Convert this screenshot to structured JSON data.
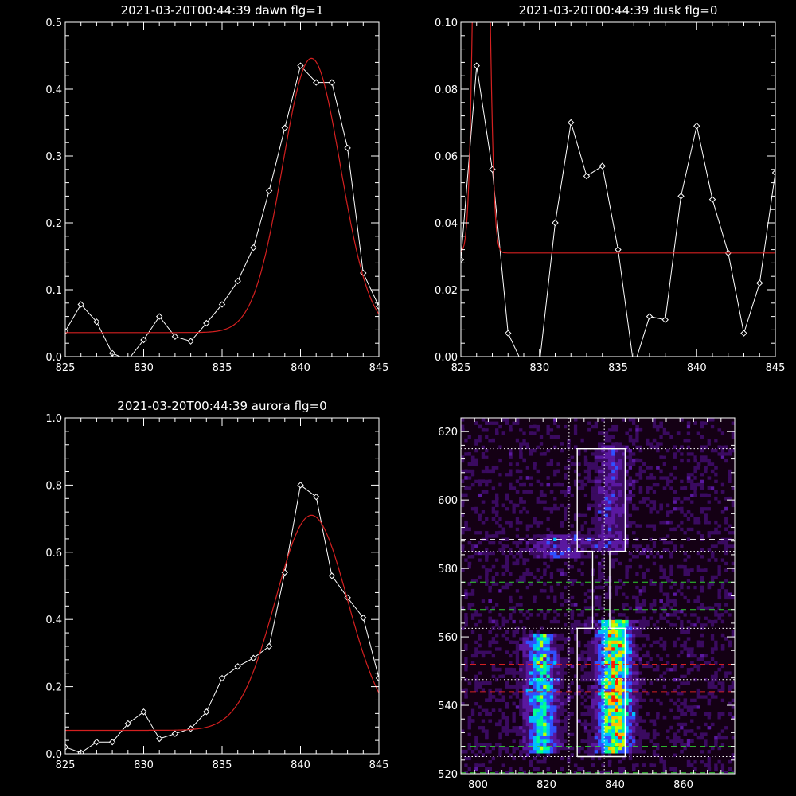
{
  "chart_data": [
    {
      "type": "line",
      "title": "2021-03-20T00:44:39 dawn flg=1",
      "xlim": [
        825,
        845
      ],
      "ylim": [
        0,
        0.5
      ],
      "xticks": [
        "825",
        "830",
        "835",
        "840",
        "845"
      ],
      "yticks": [
        "0.0",
        "0.1",
        "0.2",
        "0.3",
        "0.4",
        "0.5"
      ],
      "series": [
        {
          "style": "observed",
          "color": "#ffffff",
          "marker": "diamond",
          "x": [
            825,
            826,
            827,
            828,
            829,
            830,
            831,
            832,
            833,
            834,
            835,
            836,
            837,
            838,
            839,
            840,
            841,
            842,
            843,
            844,
            845
          ],
          "y": [
            0.038,
            0.078,
            0.052,
            0.005,
            -0.005,
            0.025,
            0.06,
            0.03,
            0.023,
            0.05,
            0.078,
            0.113,
            0.163,
            0.248,
            0.342,
            0.435,
            0.41,
            0.41,
            0.312,
            0.125,
            0.075
          ]
        },
        {
          "style": "fit",
          "color": "#d42020",
          "fit": {
            "kind": "gaussian",
            "baseline": 0.036,
            "amplitude": 0.41,
            "center": 840.7,
            "sigma": 1.85
          }
        }
      ]
    },
    {
      "type": "line",
      "title": "2021-03-20T00:44:39 dusk flg=0",
      "xlim": [
        825,
        845
      ],
      "ylim": [
        0,
        0.1
      ],
      "xticks": [
        "825",
        "830",
        "835",
        "840",
        "845"
      ],
      "yticks": [
        "0.00",
        "0.02",
        "0.04",
        "0.06",
        "0.08",
        "0.10"
      ],
      "series": [
        {
          "style": "observed",
          "color": "#ffffff",
          "marker": "diamond",
          "x": [
            825,
            826,
            827,
            828,
            829,
            830,
            831,
            832,
            833,
            834,
            835,
            836,
            837,
            838,
            839,
            840,
            841,
            842,
            843,
            844,
            845
          ],
          "y": [
            0.029,
            0.087,
            0.056,
            0.007,
            -0.003,
            -0.002,
            0.04,
            0.07,
            0.054,
            0.057,
            0.032,
            -0.003,
            0.012,
            0.011,
            0.048,
            0.069,
            0.047,
            0.031,
            0.007,
            0.022,
            0.055
          ]
        },
        {
          "style": "fit",
          "color": "#d42020",
          "fit": {
            "kind": "gaussian",
            "baseline": 0.031,
            "amplitude": 0.25,
            "center": 826.3,
            "sigma": 0.36
          }
        }
      ]
    },
    {
      "type": "line",
      "title": "2021-03-20T00:44:39 aurora flg=0",
      "xlim": [
        825,
        845
      ],
      "ylim": [
        0,
        1.0
      ],
      "xticks": [
        "825",
        "830",
        "835",
        "840",
        "845"
      ],
      "yticks": [
        "0.0",
        "0.2",
        "0.4",
        "0.6",
        "0.8",
        "1.0"
      ],
      "series": [
        {
          "style": "observed",
          "color": "#ffffff",
          "marker": "diamond",
          "x": [
            825,
            826,
            827,
            828,
            829,
            830,
            831,
            832,
            833,
            834,
            835,
            836,
            837,
            838,
            839,
            840,
            841,
            842,
            843,
            844,
            845
          ],
          "y": [
            0.02,
            0.003,
            0.035,
            0.035,
            0.09,
            0.125,
            0.045,
            0.06,
            0.075,
            0.125,
            0.225,
            0.26,
            0.285,
            0.32,
            0.54,
            0.8,
            0.765,
            0.53,
            0.465,
            0.405,
            0.225
          ]
        },
        {
          "style": "fit",
          "color": "#d42020",
          "fit": {
            "kind": "gaussian",
            "baseline": 0.07,
            "amplitude": 0.64,
            "center": 840.7,
            "sigma": 2.3
          }
        }
      ]
    },
    {
      "type": "heatmap",
      "title": "",
      "xlim": [
        795,
        875
      ],
      "ylim": [
        520,
        624
      ],
      "xticks": [
        "800",
        "820",
        "840",
        "860"
      ],
      "yticks": [
        "520",
        "540",
        "560",
        "580",
        "600",
        "620"
      ],
      "colormap": [
        "#140014",
        "#3a0a60",
        "#5a18a0",
        "#3050ff",
        "#00c0ff",
        "#00ff90",
        "#c0ff00",
        "#ffc000",
        "#ff2000"
      ],
      "bands": [
        {
          "x_center": 818.5,
          "x_width": 3.2,
          "y_range": [
            526,
            560
          ],
          "peak": 0.7
        },
        {
          "x_center": 840.0,
          "x_width": 3.4,
          "y_range": [
            526,
            564
          ],
          "peak": 1.0
        },
        {
          "x_center": 839.0,
          "x_width": 3.5,
          "y_range": [
            585,
            615
          ],
          "peak": 0.3
        },
        {
          "x_center": 823.5,
          "x_width": 6.0,
          "y_range": [
            583,
            589
          ],
          "peak": 0.3
        }
      ],
      "overlay_lines": [
        {
          "orientation": "horizontal",
          "value": 588.5,
          "color": "#ffffff",
          "dash": "dashed"
        },
        {
          "orientation": "horizontal",
          "value": 576,
          "color": "#30d030",
          "dash": "dashed"
        },
        {
          "orientation": "horizontal",
          "value": 568,
          "color": "#30d030",
          "dash": "dashed"
        },
        {
          "orientation": "horizontal",
          "value": 558.5,
          "color": "#ffffff",
          "dash": "dashed"
        },
        {
          "orientation": "horizontal",
          "value": 552,
          "color": "#d42020",
          "dash": "dashed"
        },
        {
          "orientation": "horizontal",
          "value": 544,
          "color": "#d42020",
          "dash": "dashed"
        },
        {
          "orientation": "horizontal",
          "value": 528,
          "color": "#30d030",
          "dash": "dashed"
        },
        {
          "orientation": "horizontal",
          "value": 520.3,
          "color": "#30d030",
          "dash": "dashed"
        },
        {
          "orientation": "horizontal",
          "value": 615,
          "color": "#ffffff",
          "dash": "dotted"
        },
        {
          "orientation": "horizontal",
          "value": 585,
          "color": "#ffffff",
          "dash": "dotted"
        },
        {
          "orientation": "horizontal",
          "value": 562.5,
          "color": "#ffffff",
          "dash": "dotted"
        },
        {
          "orientation": "horizontal",
          "value": 547.5,
          "color": "#ffffff",
          "dash": "dotted"
        },
        {
          "orientation": "horizontal",
          "value": 525,
          "color": "#ffffff",
          "dash": "dotted"
        },
        {
          "orientation": "vertical",
          "value": 826.6,
          "color": "#ffffff",
          "dash": "dotted"
        },
        {
          "orientation": "vertical",
          "value": 836.9,
          "color": "#ffffff",
          "dash": "dotted"
        }
      ],
      "outline_polygon": [
        [
          829,
          525
        ],
        [
          829,
          562.5
        ],
        [
          833.5,
          562.5
        ],
        [
          833.5,
          585
        ],
        [
          829,
          585
        ],
        [
          829,
          615
        ],
        [
          843,
          615
        ],
        [
          843,
          585
        ],
        [
          838.5,
          585
        ],
        [
          838.5,
          562.5
        ],
        [
          843,
          562.5
        ],
        [
          843,
          525
        ],
        [
          829,
          525
        ]
      ]
    }
  ]
}
